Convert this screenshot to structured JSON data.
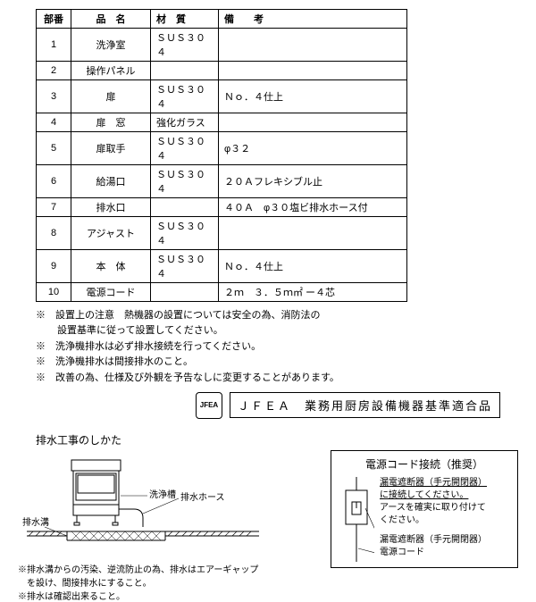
{
  "table": {
    "headers": {
      "num": "部番",
      "name": "品　名",
      "material": "材　質",
      "remarks": "備　　考"
    },
    "rows": [
      {
        "num": "1",
        "name": "洗浄室",
        "material": "ＳＵＳ３０４",
        "remarks": ""
      },
      {
        "num": "2",
        "name": "操作パネル",
        "material": "",
        "remarks": ""
      },
      {
        "num": "3",
        "name": "扉",
        "material": "ＳＵＳ３０４",
        "remarks": "Ｎｏ．４仕上"
      },
      {
        "num": "4",
        "name": "扉　窓",
        "material": "強化ガラス",
        "remarks": ""
      },
      {
        "num": "5",
        "name": "扉取手",
        "material": "ＳＵＳ３０４",
        "remarks": "φ３２"
      },
      {
        "num": "6",
        "name": "給湯口",
        "material": "ＳＵＳ３０４",
        "remarks": "２０Ａフレキシブル止"
      },
      {
        "num": "7",
        "name": "排水口",
        "material": "",
        "remarks": "４０Ａ　φ３０塩ビ排水ホース付"
      },
      {
        "num": "8",
        "name": "アジャスト",
        "material": "ＳＵＳ３０４",
        "remarks": ""
      },
      {
        "num": "9",
        "name": "本　体",
        "material": "ＳＵＳ３０４",
        "remarks": "Ｎｏ．４仕上"
      },
      {
        "num": "10",
        "name": "電源コード",
        "material": "",
        "remarks": "２ｍ　３．５ｍ㎡ ー４芯"
      }
    ]
  },
  "notes": [
    "※　設置上の注意　熱機器の設置については安全の為、消防法の",
    "設置基準に従って設置してください。",
    "※　洗浄機排水は必ず排水接続を行ってください。",
    "※　洗浄機排水は間接排水のこと。",
    "※　改善の為、仕様及び外観を予告なしに変更することがあります。"
  ],
  "jfea": {
    "logo": "JFEA",
    "label": "ＪＦＥＡ　業務用厨房設備機器基準適合品"
  },
  "drain": {
    "title": "排水工事のしかた",
    "labels": {
      "tank": "洗浄槽",
      "hose": "排水ホース",
      "drain": "排水溝"
    },
    "note1": "※排水溝からの汚染、逆流防止の為、排水はエアーギャップ",
    "note1b": "　を設け、間接排水にすること。",
    "note2": "※排水は確認出来ること。"
  },
  "power": {
    "title": "電源コード接続（推奨）",
    "line1": "漏電遮断器（手元開閉器）",
    "line2": "に接続してください。",
    "line3": "アースを確実に取り付けて",
    "line4": "ください。",
    "lbl_breaker": "漏電遮断器（手元開閉器）",
    "lbl_cord": "電源コード"
  }
}
